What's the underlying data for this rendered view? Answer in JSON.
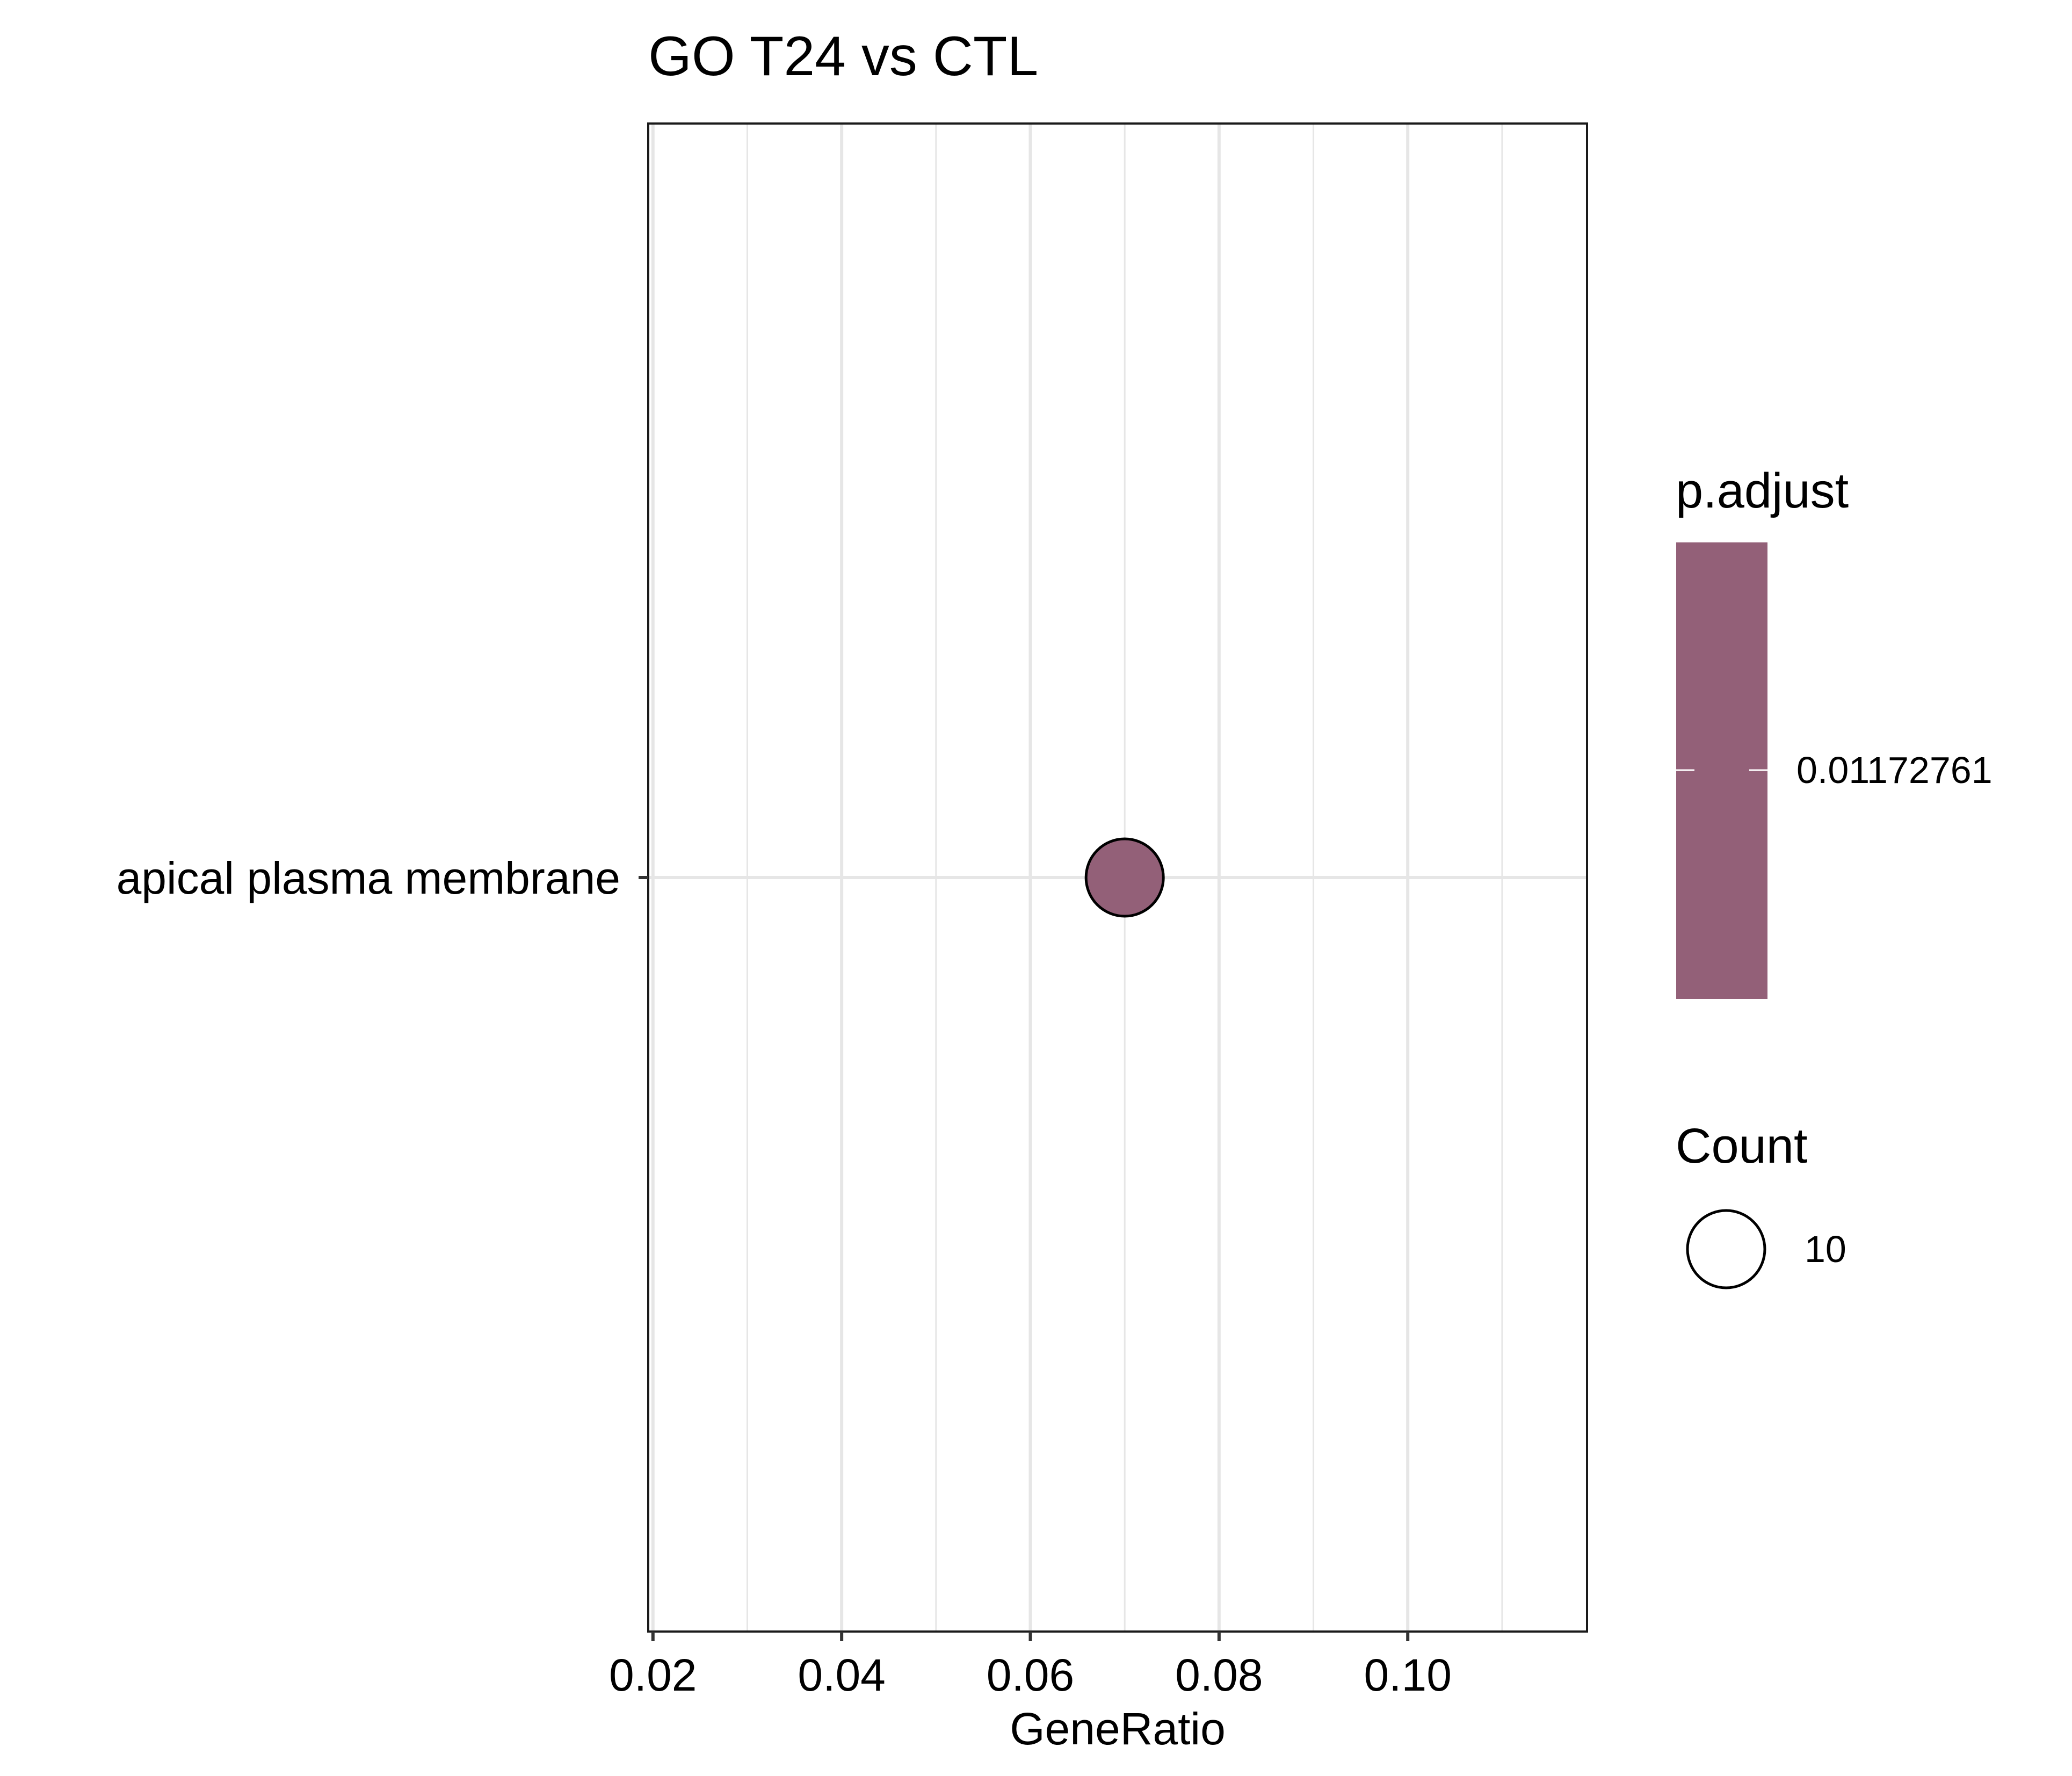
{
  "chart_data": {
    "type": "scatter",
    "title": "GO T24 vs CTL",
    "xlabel": "GeneRatio",
    "ylabel": "",
    "xlim": [
      0.0195,
      0.119
    ],
    "x_ticks": [
      {
        "value": 0.02,
        "label": "0.02"
      },
      {
        "value": 0.04,
        "label": "0.04"
      },
      {
        "value": 0.06,
        "label": "0.06"
      },
      {
        "value": 0.08,
        "label": "0.08"
      },
      {
        "value": 0.1,
        "label": "0.10"
      }
    ],
    "x_minor_grid": [
      0.03,
      0.05,
      0.07,
      0.09,
      0.11
    ],
    "categories": [
      "apical plasma membrane"
    ],
    "points": [
      {
        "category": "apical plasma membrane",
        "x": 0.07,
        "count": 10,
        "p_adjust": 0.01172761,
        "color": "#936078"
      }
    ],
    "grid": true,
    "legend_position": "right",
    "color_legend": {
      "title": "p.adjust",
      "label": "0.01172761",
      "color": "#936078"
    },
    "size_legend": {
      "title": "Count",
      "label": "10"
    },
    "colors": {
      "point": "#936078",
      "grid": "#e6e6e6",
      "panel_border": "#1a1a1a"
    }
  }
}
